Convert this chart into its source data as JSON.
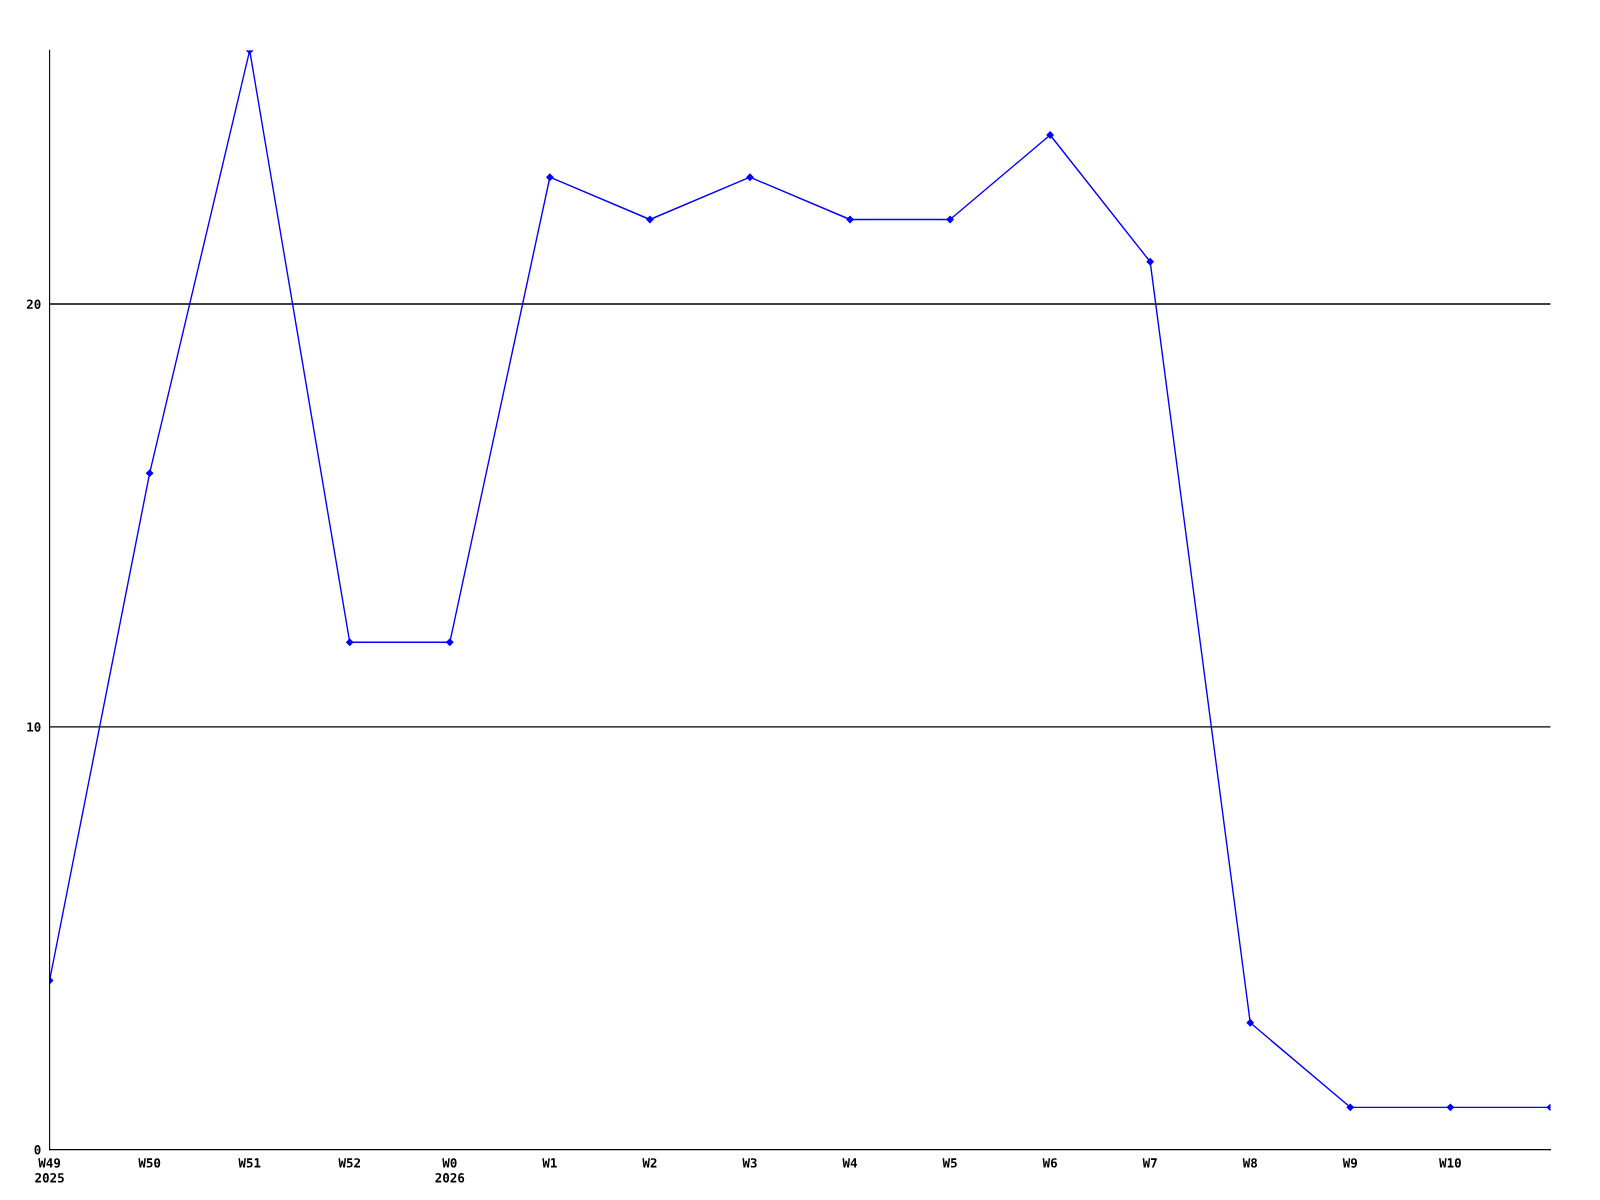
{
  "chart_data": {
    "type": "line",
    "categories": [
      "W49\n2025",
      "W50",
      "W51",
      "W52",
      "W0\n2026",
      "W1",
      "W2",
      "W3",
      "W4",
      "W5",
      "W6",
      "W7",
      "W8",
      "W9",
      "W10",
      null
    ],
    "series": [
      {
        "color": "#0000ff",
        "values": [
          4,
          16,
          26,
          12,
          12,
          23,
          22,
          23,
          22,
          22,
          24,
          21,
          3,
          1,
          1,
          1
        ]
      }
    ],
    "ylim": [
      0,
      26
    ],
    "yticks": [
      0,
      10,
      20
    ],
    "grid": "y",
    "marker": "diamond",
    "line_style": "solid"
  }
}
